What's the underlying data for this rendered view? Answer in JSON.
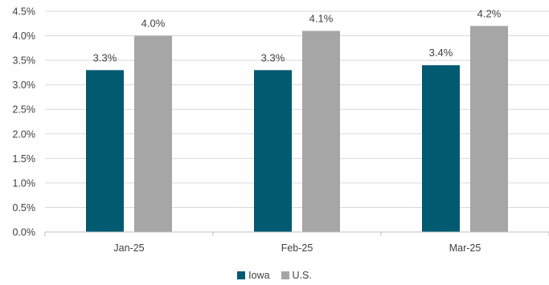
{
  "chart_data": {
    "type": "bar",
    "categories": [
      "Jan-25",
      "Feb-25",
      "Mar-25"
    ],
    "series": [
      {
        "name": "Iowa",
        "values": [
          3.3,
          3.3,
          3.4
        ],
        "labels": [
          "3.3%",
          "3.3%",
          "3.4%"
        ],
        "color": "#005a70"
      },
      {
        "name": "U.S.",
        "values": [
          4.0,
          4.1,
          4.2
        ],
        "labels": [
          "4.0%",
          "4.1%",
          "4.2%"
        ],
        "color": "#a6a6a6"
      }
    ],
    "ylim": [
      0,
      4.5
    ],
    "yticks": [
      0,
      0.5,
      1.0,
      1.5,
      2.0,
      2.5,
      3.0,
      3.5,
      4.0,
      4.5
    ],
    "ytick_labels": [
      "0.0%",
      "0.5%",
      "1.0%",
      "1.5%",
      "2.0%",
      "2.5%",
      "3.0%",
      "3.5%",
      "4.0%",
      "4.5%"
    ],
    "grid": true,
    "legend_position": "bottom",
    "title": "",
    "xlabel": "",
    "ylabel": ""
  }
}
